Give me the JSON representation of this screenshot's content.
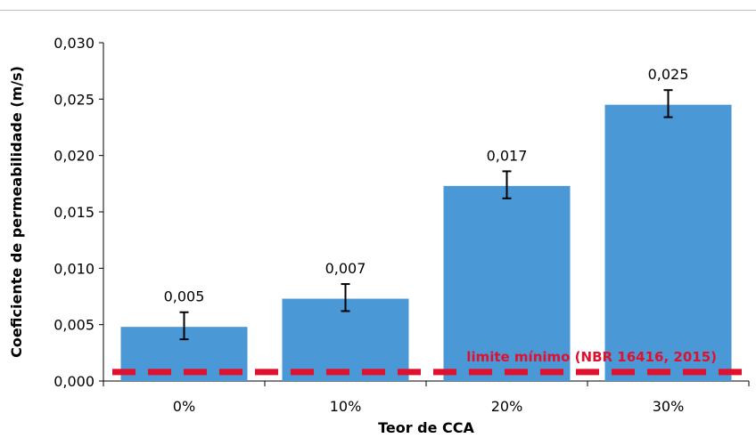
{
  "chart_data": {
    "type": "bar",
    "categories": [
      "0%",
      "10%",
      "20%",
      "30%"
    ],
    "values": [
      0.0048,
      0.0073,
      0.0173,
      0.0245
    ],
    "value_labels": [
      "0,005",
      "0,007",
      "0,017",
      "0,025"
    ],
    "error_bars": [
      {
        "low": 0.0037,
        "high": 0.0061
      },
      {
        "low": 0.0062,
        "high": 0.0086
      },
      {
        "low": 0.0162,
        "high": 0.0186
      },
      {
        "low": 0.0234,
        "high": 0.0258
      }
    ],
    "xlabel": "Teor de CCA",
    "ylabel": "Coeficiente de permeabilidade (m/s)",
    "ylim": [
      0,
      0.03
    ],
    "yticks": [
      0,
      0.005,
      0.01,
      0.015,
      0.02,
      0.025,
      0.03
    ],
    "ytick_labels": [
      "0,000",
      "0,005",
      "0,010",
      "0,015",
      "0,020",
      "0,025",
      "0,030"
    ],
    "reference_line": {
      "value": 0.0008,
      "label": "limite mínimo (NBR 16416, 2015)",
      "color": "#e0102f",
      "style": "dashed"
    },
    "bar_color": "#4a98d6",
    "grid": false
  }
}
